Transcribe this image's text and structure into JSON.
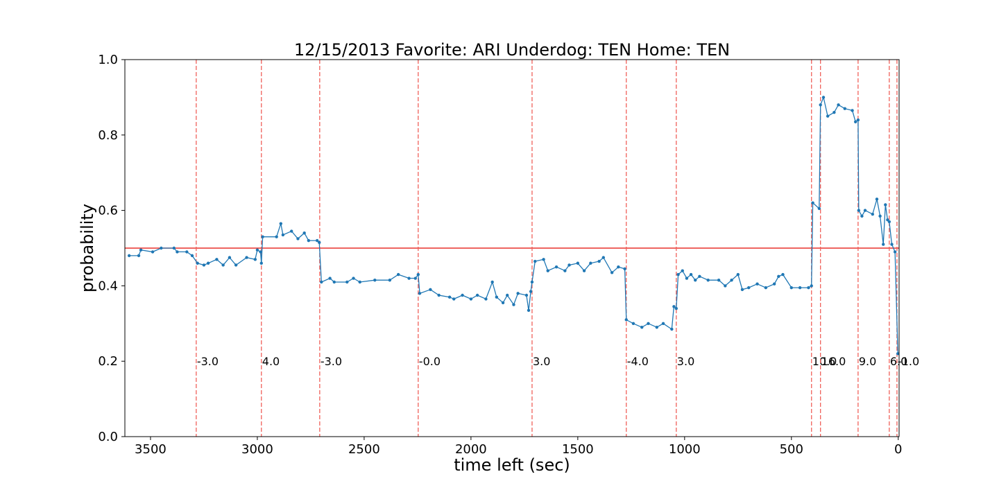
{
  "chart_data": {
    "type": "line",
    "title": "12/15/2013 Favorite: ARI Underdog: TEN Home: TEN",
    "x_label": "time left (sec)",
    "y_label": "probability",
    "xlim": [
      3620,
      -4
    ],
    "ylim": [
      0,
      1
    ],
    "xticks": [
      3500,
      3000,
      2500,
      2000,
      1500,
      1000,
      500,
      0
    ],
    "yticks": [
      {
        "value": 0,
        "label": "0.0"
      },
      0.2,
      0.4,
      0.6,
      0.8,
      {
        "value": 1,
        "label": "1.0"
      }
    ],
    "color": "#1f77b4",
    "x": [
      3600,
      3555,
      3545,
      3490,
      3450,
      3390,
      3375,
      3330,
      3305,
      3280,
      3250,
      3230,
      3190,
      3160,
      3130,
      3100,
      3050,
      3010,
      3000,
      2985,
      2981,
      2975,
      2910,
      2890,
      2880,
      2840,
      2810,
      2780,
      2760,
      2720,
      2710,
      2700,
      2660,
      2640,
      2580,
      2550,
      2520,
      2450,
      2380,
      2340,
      2290,
      2260,
      2247,
      2240,
      2190,
      2150,
      2100,
      2080,
      2040,
      2000,
      1970,
      1930,
      1900,
      1880,
      1850,
      1830,
      1800,
      1780,
      1740,
      1730,
      1720,
      1714,
      1700,
      1660,
      1640,
      1600,
      1560,
      1540,
      1500,
      1470,
      1440,
      1400,
      1380,
      1340,
      1310,
      1280,
      1273,
      1240,
      1200,
      1170,
      1130,
      1100,
      1060,
      1050,
      1039,
      1030,
      1010,
      990,
      970,
      950,
      930,
      890,
      840,
      810,
      780,
      750,
      730,
      700,
      660,
      620,
      580,
      560,
      540,
      500,
      460,
      420,
      406,
      400,
      370,
      364,
      350,
      330,
      300,
      280,
      250,
      215,
      200,
      188,
      185,
      170,
      155,
      120,
      100,
      85,
      70,
      60,
      50,
      42,
      30,
      15,
      2
    ],
    "values": [
      0.48,
      0.48,
      0.495,
      0.49,
      0.5,
      0.5,
      0.49,
      0.49,
      0.48,
      0.46,
      0.455,
      0.46,
      0.47,
      0.455,
      0.475,
      0.455,
      0.475,
      0.47,
      0.495,
      0.49,
      0.46,
      0.53,
      0.53,
      0.565,
      0.535,
      0.545,
      0.525,
      0.54,
      0.52,
      0.52,
      0.515,
      0.41,
      0.42,
      0.41,
      0.41,
      0.42,
      0.41,
      0.415,
      0.415,
      0.43,
      0.42,
      0.42,
      0.43,
      0.38,
      0.39,
      0.375,
      0.37,
      0.365,
      0.375,
      0.365,
      0.375,
      0.365,
      0.41,
      0.37,
      0.355,
      0.375,
      0.35,
      0.38,
      0.375,
      0.335,
      0.385,
      0.41,
      0.465,
      0.47,
      0.44,
      0.45,
      0.44,
      0.455,
      0.46,
      0.44,
      0.46,
      0.465,
      0.475,
      0.435,
      0.45,
      0.445,
      0.31,
      0.3,
      0.29,
      0.3,
      0.29,
      0.3,
      0.285,
      0.345,
      0.34,
      0.43,
      0.44,
      0.42,
      0.43,
      0.415,
      0.425,
      0.415,
      0.415,
      0.4,
      0.415,
      0.43,
      0.39,
      0.395,
      0.405,
      0.395,
      0.405,
      0.425,
      0.43,
      0.395,
      0.395,
      0.395,
      0.4,
      0.62,
      0.605,
      0.88,
      0.9,
      0.85,
      0.86,
      0.88,
      0.87,
      0.865,
      0.835,
      0.84,
      0.6,
      0.585,
      0.6,
      0.59,
      0.63,
      0.585,
      0.51,
      0.615,
      0.575,
      0.57,
      0.51,
      0.49,
      0.22
    ],
    "hline": {
      "y": 0.5,
      "color": "#e8312b"
    },
    "annotation_y": 0.2,
    "vlines": [
      {
        "x": 3286,
        "label": "-3.0"
      },
      {
        "x": 2981,
        "label": "4.0"
      },
      {
        "x": 2708,
        "label": "-3.0"
      },
      {
        "x": 2247,
        "label": "-0.0"
      },
      {
        "x": 1714,
        "label": "3.0"
      },
      {
        "x": 1273,
        "label": "-4.0"
      },
      {
        "x": 1039,
        "label": "3.0"
      },
      {
        "x": 406,
        "label": "10.0"
      },
      {
        "x": 364,
        "label": "16.0"
      },
      {
        "x": 188,
        "label": "9.0"
      },
      {
        "x": 42,
        "label": "6.0"
      },
      {
        "x": 6,
        "label": "-1.0"
      }
    ],
    "vline_color": "#f0605a"
  }
}
